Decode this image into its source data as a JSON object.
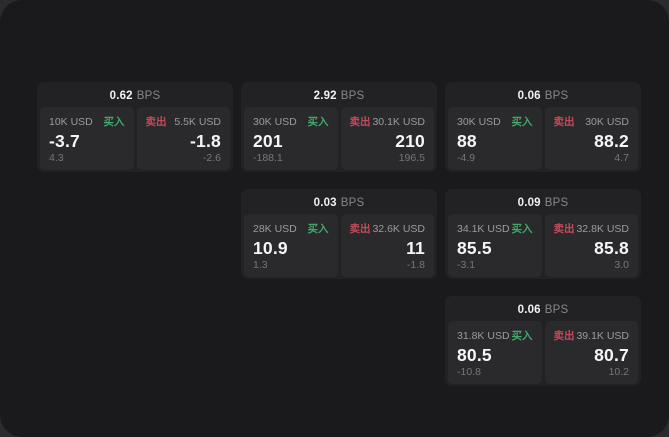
{
  "labels": {
    "buy": "买入",
    "sell": "卖出",
    "bps": "BPS"
  },
  "theme": {
    "page_bg": "#2b2b2d",
    "panel_bg": "#1a1a1c",
    "card_bg": "#222225",
    "tile_bg": "#2a2a2d",
    "buy_color": "#42a868",
    "sell_color": "#c44a5a",
    "label_color": "#9b9b9f",
    "muted_color": "#76767a",
    "value_color": "#f5f5f6"
  },
  "cards": [
    {
      "bps": "0.62",
      "buy": {
        "amount": "10K USD",
        "value": "-3.7",
        "delta": "4.3"
      },
      "sell": {
        "amount": "5.5K USD",
        "value": "-1.8",
        "delta": "-2.6"
      }
    },
    {
      "bps": "2.92",
      "buy": {
        "amount": "30K USD",
        "value": "201",
        "delta": "-188.1"
      },
      "sell": {
        "amount": "30.1K USD",
        "value": "210",
        "delta": "196.5"
      }
    },
    {
      "bps": "0.06",
      "buy": {
        "amount": "30K USD",
        "value": "88",
        "delta": "-4.9"
      },
      "sell": {
        "amount": "30K USD",
        "value": "88.2",
        "delta": "4.7"
      }
    },
    {
      "bps": "0.03",
      "buy": {
        "amount": "28K USD",
        "value": "10.9",
        "delta": "1.3"
      },
      "sell": {
        "amount": "32.6K USD",
        "value": "11",
        "delta": "-1.8"
      }
    },
    {
      "bps": "0.09",
      "buy": {
        "amount": "34.1K USD",
        "value": "85.5",
        "delta": "-3.1"
      },
      "sell": {
        "amount": "32.8K USD",
        "value": "85.8",
        "delta": "3.0"
      }
    },
    {
      "bps": "0.06",
      "buy": {
        "amount": "31.8K USD",
        "value": "80.5",
        "delta": "-10.8"
      },
      "sell": {
        "amount": "39.1K USD",
        "value": "80.7",
        "delta": "10.2"
      }
    }
  ]
}
